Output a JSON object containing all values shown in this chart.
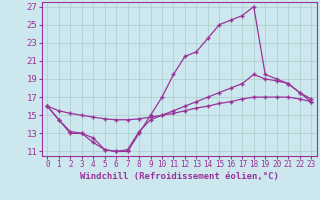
{
  "xlabel": "Windchill (Refroidissement éolien,°C)",
  "bg_color": "#cce8ee",
  "line_color": "#993399",
  "grid_color": "#aacccc",
  "xlim": [
    -0.5,
    23.5
  ],
  "ylim": [
    10.5,
    27.5
  ],
  "xticks": [
    0,
    1,
    2,
    3,
    4,
    5,
    6,
    7,
    8,
    9,
    10,
    11,
    12,
    13,
    14,
    15,
    16,
    17,
    18,
    19,
    20,
    21,
    22,
    23
  ],
  "yticks": [
    11,
    13,
    15,
    17,
    19,
    21,
    23,
    25,
    27
  ],
  "line1_x": [
    0,
    1,
    2,
    3,
    4,
    5,
    6,
    7,
    8,
    9,
    10,
    11,
    12,
    13,
    14,
    15,
    16,
    17,
    18,
    19,
    20,
    21,
    22,
    23
  ],
  "line1_y": [
    16.0,
    14.5,
    13.0,
    13.0,
    12.0,
    11.2,
    11.0,
    11.0,
    13.0,
    15.0,
    17.0,
    19.5,
    21.5,
    22.0,
    23.5,
    25.0,
    25.5,
    26.0,
    27.0,
    19.5,
    19.0,
    18.5,
    17.5,
    16.5
  ],
  "line2_x": [
    0,
    1,
    2,
    3,
    4,
    5,
    6,
    7,
    8,
    9,
    10,
    11,
    12,
    13,
    14,
    15,
    16,
    17,
    18,
    19,
    20,
    21,
    22,
    23
  ],
  "line2_y": [
    16.0,
    15.5,
    15.2,
    15.0,
    14.8,
    14.6,
    14.5,
    14.5,
    14.6,
    14.8,
    15.0,
    15.2,
    15.5,
    15.8,
    16.0,
    16.3,
    16.5,
    16.8,
    17.0,
    17.0,
    17.0,
    17.0,
    16.8,
    16.5
  ],
  "line3_x": [
    0,
    1,
    2,
    3,
    4,
    5,
    6,
    7,
    8,
    9,
    10,
    11,
    12,
    13,
    14,
    15,
    16,
    17,
    18,
    19,
    20,
    21,
    22,
    23
  ],
  "line3_y": [
    16.0,
    14.5,
    13.2,
    13.0,
    12.5,
    11.2,
    11.0,
    11.2,
    13.2,
    14.5,
    15.0,
    15.5,
    16.0,
    16.5,
    17.0,
    17.5,
    18.0,
    18.5,
    19.5,
    19.0,
    18.8,
    18.5,
    17.5,
    16.8
  ],
  "marker": "+",
  "markersize": 3,
  "linewidth": 0.9,
  "font_size": 6.5
}
